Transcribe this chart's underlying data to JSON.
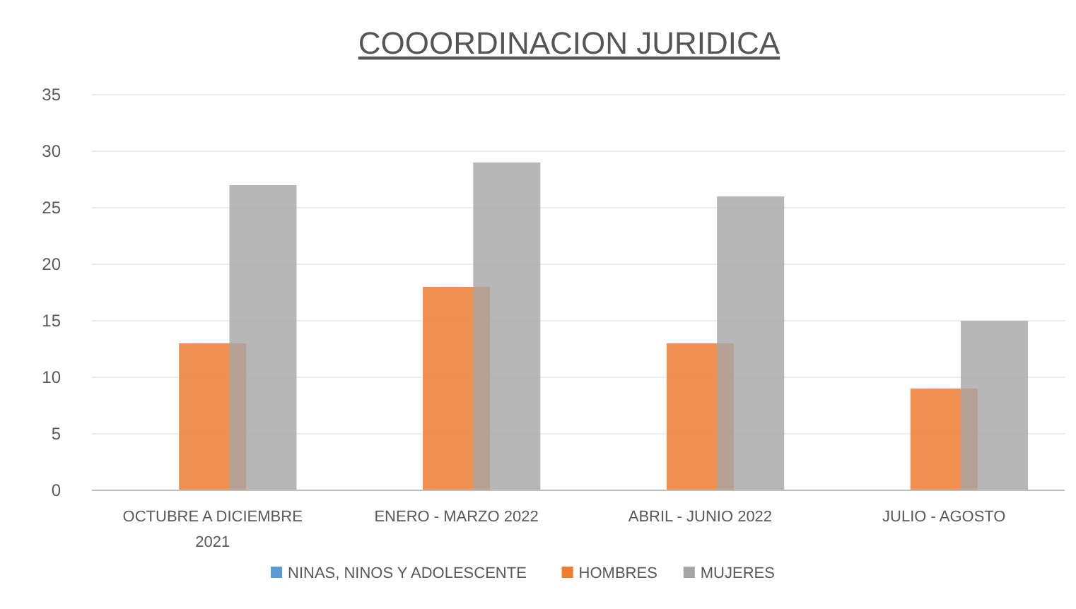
{
  "chart_data": {
    "type": "bar",
    "title": "COOORDINACION JURIDICA",
    "categories": [
      "OCTUBRE A DICIEMBRE 2021",
      "ENERO - MARZO 2022",
      "ABRIL - JUNIO 2022",
      "JULIO - AGOSTO"
    ],
    "series": [
      {
        "name": "NINAS, NINOS Y ADOLESCENTE",
        "color": "#5b9bd5",
        "values": [
          0,
          0,
          0,
          0
        ]
      },
      {
        "name": "HOMBRES",
        "color": "#ed7d31",
        "values": [
          13,
          18,
          13,
          9
        ]
      },
      {
        "name": "MUJERES",
        "color": "#a5a5a5",
        "values": [
          27,
          29,
          26,
          15
        ]
      }
    ],
    "ylim": [
      0,
      35
    ],
    "yticks": [
      0,
      5,
      10,
      15,
      20,
      25,
      30,
      35
    ],
    "grid": "y",
    "legend": "bottom"
  }
}
